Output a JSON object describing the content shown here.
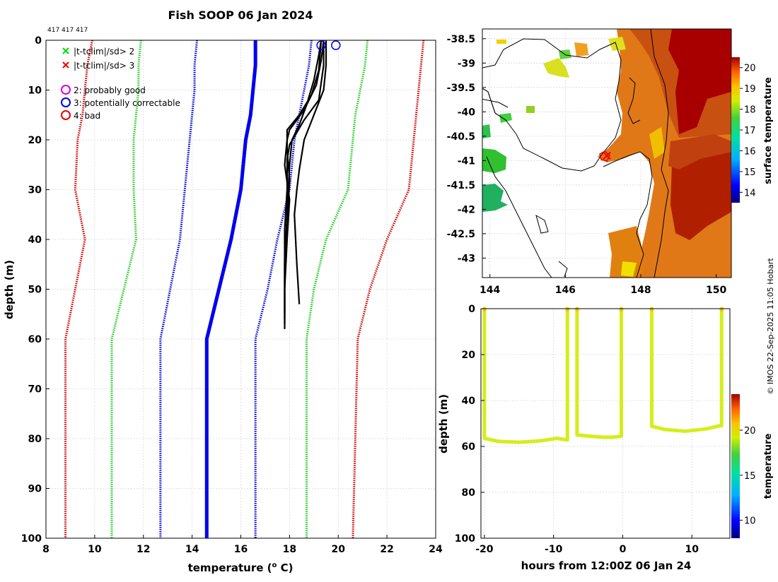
{
  "chart_data": [
    {
      "type": "line",
      "title": "Fish SOOP 06 Jan 2024",
      "id_label": "417 417 417",
      "xlabel_main": "temperature (",
      "xlabel_sup": "o",
      "xlabel_tail": " C)",
      "ylabel": "depth (m)",
      "xlim": [
        8,
        24
      ],
      "ylim": [
        0,
        100
      ],
      "x_ticks": [
        8,
        10,
        12,
        14,
        16,
        18,
        20,
        22,
        24
      ],
      "y_ticks": [
        0,
        10,
        20,
        30,
        40,
        50,
        60,
        70,
        80,
        90,
        100
      ],
      "legend": [
        {
          "marker": "x",
          "color": "#00dd00",
          "label": "|t-tclim|/sd> 2"
        },
        {
          "marker": "x",
          "color": "#ee0000",
          "label": "|t-tclim|/sd> 3"
        },
        {
          "marker": "o",
          "color": "#dd00dd",
          "label": "2: probably good"
        },
        {
          "marker": "o",
          "color": "#0000ee",
          "label": "3: potentially correctable"
        },
        {
          "marker": "o",
          "color": "#ee0000",
          "label": "4: bad"
        }
      ],
      "climatology": [
        {
          "name": "clim -3sd",
          "color": "#cc0000",
          "style": "dotted",
          "depth": [
            0,
            5,
            10,
            15,
            20,
            30,
            40,
            50,
            60,
            100
          ],
          "values": [
            9.9,
            9.7,
            9.6,
            9.5,
            9.3,
            9.2,
            9.6,
            9.2,
            8.8,
            8.8
          ]
        },
        {
          "name": "clim -2sd",
          "color": "#22cc22",
          "style": "dotted",
          "depth": [
            0,
            5,
            10,
            15,
            20,
            30,
            40,
            50,
            60,
            100
          ],
          "values": [
            11.9,
            11.8,
            11.8,
            11.7,
            11.6,
            11.6,
            11.7,
            11.2,
            10.7,
            10.7
          ]
        },
        {
          "name": "clim -1sd",
          "color": "#0000cc",
          "style": "dotted",
          "depth": [
            0,
            5,
            10,
            15,
            20,
            30,
            40,
            50,
            60,
            100
          ],
          "values": [
            14.2,
            14.1,
            14.1,
            14.0,
            13.9,
            13.7,
            13.5,
            13.1,
            12.7,
            12.7
          ]
        },
        {
          "name": "clim mean",
          "color": "#0000ee",
          "style": "solid",
          "depth": [
            0,
            5,
            10,
            15,
            20,
            30,
            40,
            50,
            60,
            100
          ],
          "values": [
            16.6,
            16.6,
            16.5,
            16.4,
            16.2,
            16.0,
            15.6,
            15.1,
            14.6,
            14.6
          ]
        },
        {
          "name": "clim +1sd",
          "color": "#0000cc",
          "style": "dotted",
          "depth": [
            0,
            5,
            10,
            15,
            20,
            30,
            40,
            50,
            60,
            100
          ],
          "values": [
            18.9,
            18.8,
            18.6,
            18.4,
            18.2,
            18.0,
            17.5,
            17.1,
            16.6,
            16.6
          ]
        },
        {
          "name": "clim +2sd",
          "color": "#22cc22",
          "style": "dotted",
          "depth": [
            0,
            5,
            10,
            15,
            20,
            30,
            40,
            50,
            60,
            100
          ],
          "values": [
            21.2,
            21.1,
            20.9,
            20.7,
            20.6,
            20.4,
            19.5,
            19.0,
            18.7,
            18.7
          ]
        },
        {
          "name": "clim +3sd",
          "color": "#cc0000",
          "style": "dotted",
          "depth": [
            0,
            5,
            10,
            15,
            20,
            30,
            40,
            50,
            60,
            100
          ],
          "values": [
            23.5,
            23.4,
            23.3,
            23.2,
            23.1,
            22.9,
            22.0,
            21.3,
            20.8,
            20.6
          ]
        }
      ],
      "profiles": [
        {
          "name": "profile 1",
          "color": "#000000",
          "depth": [
            0,
            3,
            8,
            13,
            17,
            20,
            25,
            35,
            45,
            55,
            58
          ],
          "values": [
            19.3,
            19.2,
            19.0,
            18.7,
            18.4,
            18.1,
            18.0,
            17.9,
            17.8,
            17.8,
            17.8
          ]
        },
        {
          "name": "profile 2",
          "color": "#000000",
          "depth": [
            0,
            4,
            9,
            14,
            18,
            20,
            25,
            32,
            40,
            50,
            56
          ],
          "values": [
            19.4,
            19.3,
            19.1,
            18.6,
            18.0,
            17.9,
            17.8,
            18.0,
            17.9,
            17.8,
            17.8
          ]
        },
        {
          "name": "profile 3",
          "color": "#000000",
          "depth": [
            0,
            5,
            10,
            15,
            20,
            26,
            30,
            35,
            45,
            53
          ],
          "values": [
            19.5,
            19.5,
            19.4,
            19.0,
            18.6,
            18.4,
            18.3,
            18.2,
            18.3,
            18.4
          ]
        },
        {
          "name": "profile 4",
          "color": "#000000",
          "depth": [
            0,
            5,
            12,
            16,
            21,
            24,
            30,
            38,
            47,
            55
          ],
          "values": [
            19.4,
            19.4,
            19.2,
            18.6,
            18.0,
            17.9,
            17.9,
            17.8,
            17.8,
            17.8
          ]
        },
        {
          "name": "profile 5",
          "color": "#000000",
          "depth": [
            0,
            6,
            11,
            15,
            18,
            22,
            28,
            36,
            44,
            57
          ],
          "values": [
            19.3,
            19.2,
            18.9,
            18.4,
            17.9,
            17.9,
            18.0,
            17.9,
            17.8,
            17.8
          ]
        }
      ],
      "flag_markers": [
        {
          "depth": 1,
          "value": 19.3,
          "flag": 3
        },
        {
          "depth": 1,
          "value": 19.9,
          "flag": 3
        }
      ]
    },
    {
      "type": "heatmap",
      "title": "",
      "xlim": [
        143.8,
        150.4
      ],
      "ylim": [
        -43.4,
        -38.3
      ],
      "x_ticks": [
        144,
        146,
        148,
        150
      ],
      "y_ticks": [
        -38.5,
        -39,
        -39.5,
        -40,
        -40.5,
        -41,
        -41.5,
        -42,
        -42.5,
        -43
      ],
      "x_tick_labels": [
        "144",
        "146",
        "148",
        "150"
      ],
      "y_tick_labels": [
        "-38.5",
        "-39",
        "-39.5",
        "-40",
        "-40.5",
        "-41",
        "-41.5",
        "-42",
        "-42.5",
        "-43"
      ],
      "colorbar_label": "surface temperature",
      "colorbar_ticks": [
        14,
        15,
        16,
        17,
        18,
        19,
        20
      ],
      "colorbar_range": [
        13.5,
        20.5
      ],
      "track_point": {
        "lon": 147.1,
        "lat": -40.9
      }
    },
    {
      "type": "scatter",
      "xlabel": "hours from 12:00Z 06 Jan 24",
      "ylabel": "depth (m)",
      "xlim": [
        -20.5,
        15.5
      ],
      "ylim": [
        0,
        100
      ],
      "x_ticks": [
        -20,
        -10,
        0,
        10
      ],
      "y_ticks": [
        0,
        20,
        40,
        60,
        80,
        100
      ],
      "colorbar_label": "temperature",
      "colorbar_ticks": [
        10,
        15,
        20
      ],
      "colorbar_range": [
        8,
        24
      ],
      "casts": [
        {
          "x": [
            -20.0,
            -18.0,
            -15.0,
            -12.0,
            -9.5,
            -8.0
          ],
          "bottom": [
            56.5,
            57.8,
            58.2,
            57.6,
            56.5,
            57.2
          ],
          "surface_x": -20.0
        },
        {
          "x": [
            -8.0
          ],
          "bottom": [
            57.0
          ],
          "surface_x": -8.0
        },
        {
          "x": [
            -6.6,
            -5.0,
            -3.0,
            -1.5,
            -0.2
          ],
          "bottom": [
            55.0,
            55.5,
            56.0,
            56.0,
            55.6
          ],
          "surface_x": -6.6
        },
        {
          "x": [
            -0.2
          ],
          "bottom": [
            55.5
          ],
          "surface_x": -0.2
        },
        {
          "x": [
            4.2,
            6.0,
            9.0,
            12.0,
            14.2
          ],
          "bottom": [
            51.2,
            52.6,
            53.4,
            52.4,
            50.9
          ],
          "surface_x": 4.2
        },
        {
          "x": [
            14.3
          ],
          "bottom": [
            51.0
          ],
          "surface_x": 14.3
        }
      ],
      "point_temperature": 19.5
    }
  ],
  "credit": "© IMOS 22-Sep-2025 11:05 Hobart",
  "icons": {
    "cross": "x-marker-icon",
    "circle": "circle-marker-icon"
  }
}
